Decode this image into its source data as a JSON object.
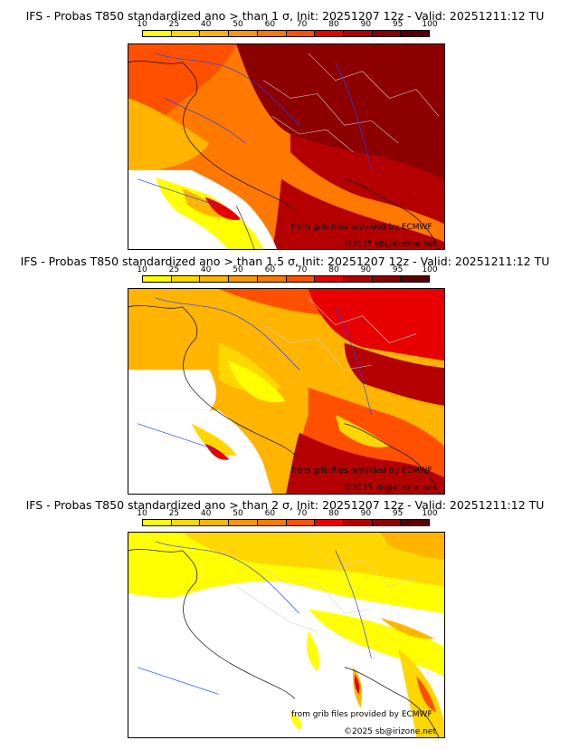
{
  "panels": [
    {
      "title": "IFS - Probas T850  standardized ano > than 1 σ, Init: 20251207 12z - Valid: 20251211:12 TU",
      "credit_source": "from grib files provided by ECMWF",
      "credit_copyright": "©2025 sb@irizone.net"
    },
    {
      "title": "IFS - Probas T850  standardized ano > than 1.5 σ, Init: 20251207 12z - Valid: 20251211:12 TU",
      "credit_source": "from grib files provided by ECMWF",
      "credit_copyright": "©2025 sb@irizone.net"
    },
    {
      "title": "IFS - Probas T850  standardized ano > than 2 σ, Init: 20251207 12z - Valid: 20251211:12 TU",
      "credit_source": "from grib files provided by ECMWF",
      "credit_copyright": "©2025 sb@irizone.net"
    }
  ],
  "colorbar": {
    "labels": [
      "10",
      "25",
      "40",
      "50",
      "60",
      "70",
      "80",
      "90",
      "95",
      "100"
    ],
    "colors": [
      "#ffff00",
      "#ffd700",
      "#ffb400",
      "#ff9600",
      "#ff7800",
      "#ff5000",
      "#e60000",
      "#b40000",
      "#8c0000",
      "#5a0000"
    ]
  }
}
